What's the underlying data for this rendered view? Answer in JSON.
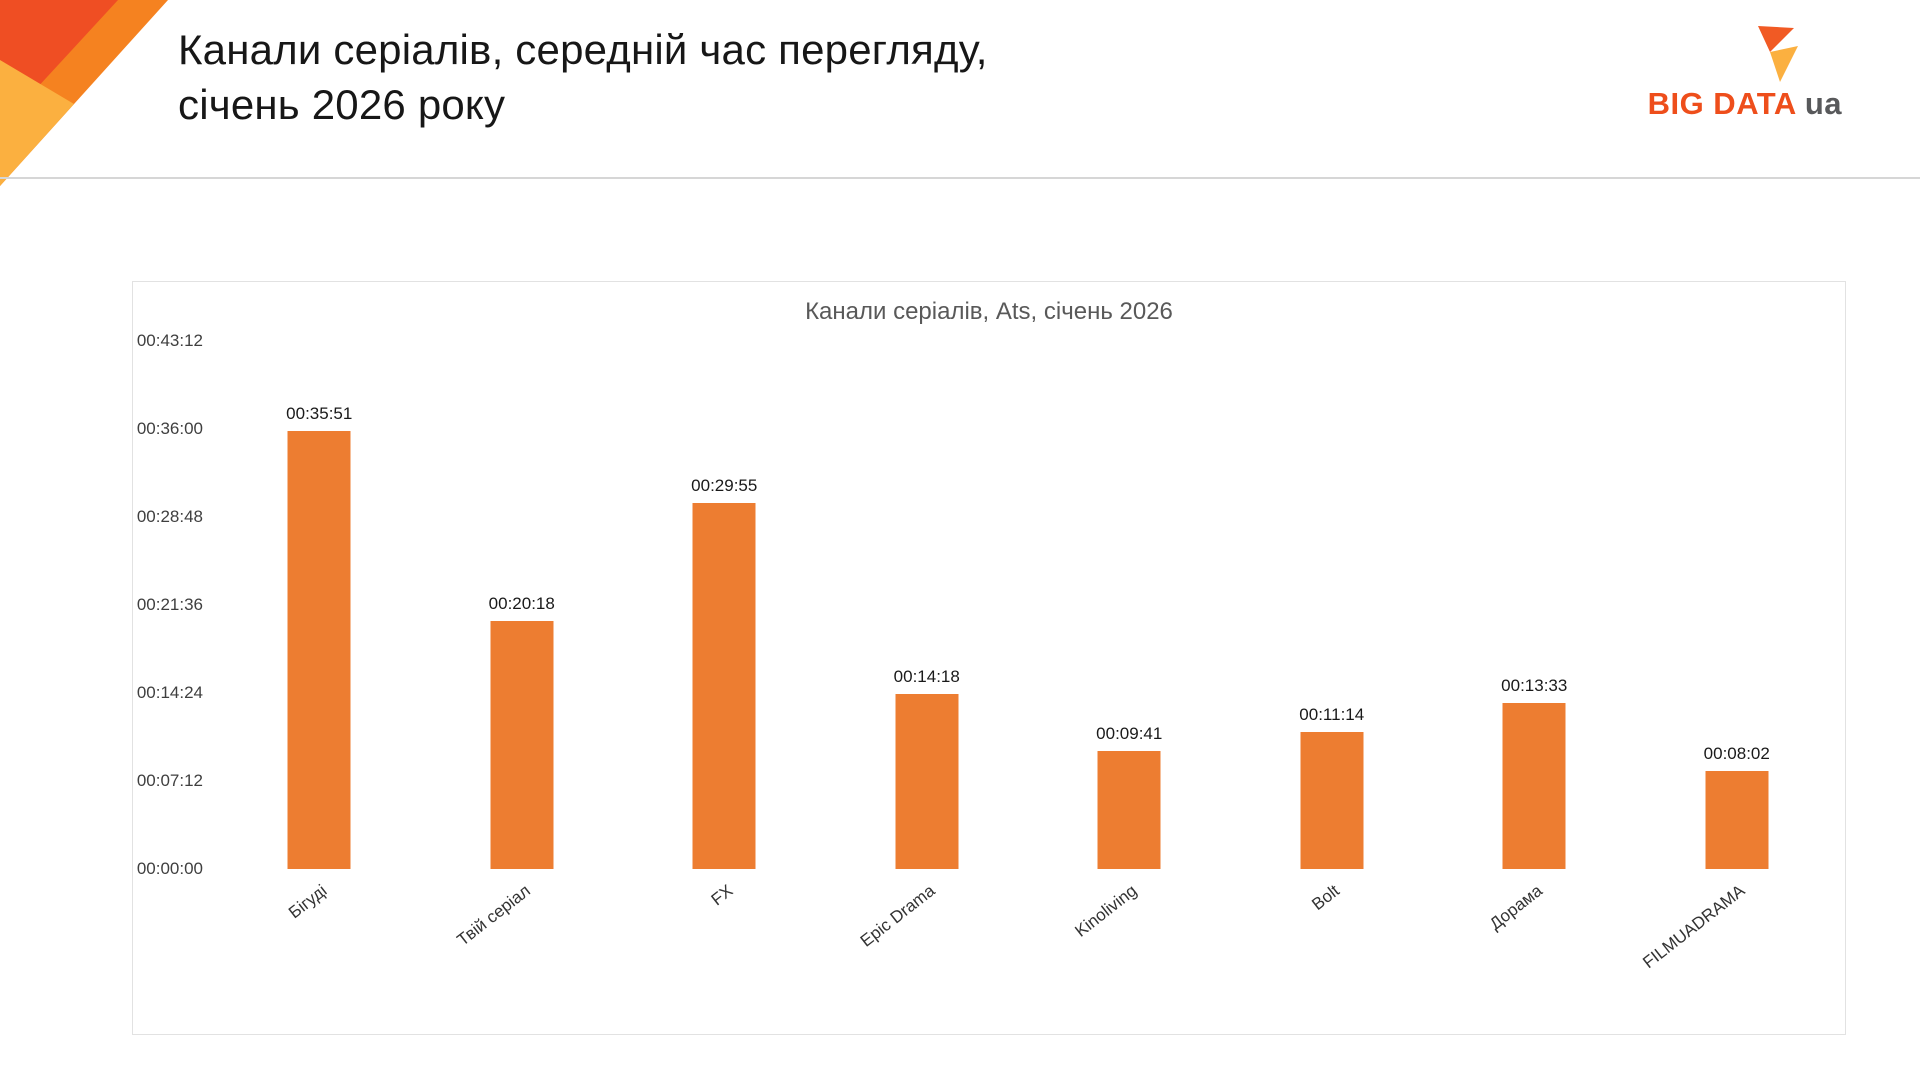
{
  "header": {
    "title_line1": "Канали серіалів, середній час перегляду,",
    "title_line2": "січень 2026 року"
  },
  "logo": {
    "brand": "BIG DATA",
    "suffix": "ua"
  },
  "colors": {
    "bar": "#ED7D31",
    "brand_orange": "#EE4E1B",
    "accent_dark": "#EF4E23",
    "accent_mid": "#F58220",
    "accent_light": "#FBB040"
  },
  "chart_data": {
    "type": "bar",
    "title": "Канали серіалів, Ats, січень 2026",
    "categories": [
      "Бігуді",
      "Твій серіал",
      "FX",
      "Epic Drama",
      "Kinoliving",
      "Bolt",
      "Дорама",
      "FILMUADRAMA"
    ],
    "values": [
      "00:35:51",
      "00:20:18",
      "00:29:55",
      "00:14:18",
      "00:09:41",
      "00:11:14",
      "00:13:33",
      "00:08:02"
    ],
    "values_seconds": [
      2151,
      1218,
      1795,
      858,
      581,
      674,
      813,
      482
    ],
    "ylim_seconds": [
      0,
      2592
    ],
    "y_ticks_top_to_bottom": [
      "00:43:12",
      "00:36:00",
      "00:28:48",
      "00:21:36",
      "00:14:24",
      "00:07:12",
      "00:00:00"
    ],
    "grid": false,
    "legend": "none",
    "xlabel": "",
    "ylabel": ""
  }
}
